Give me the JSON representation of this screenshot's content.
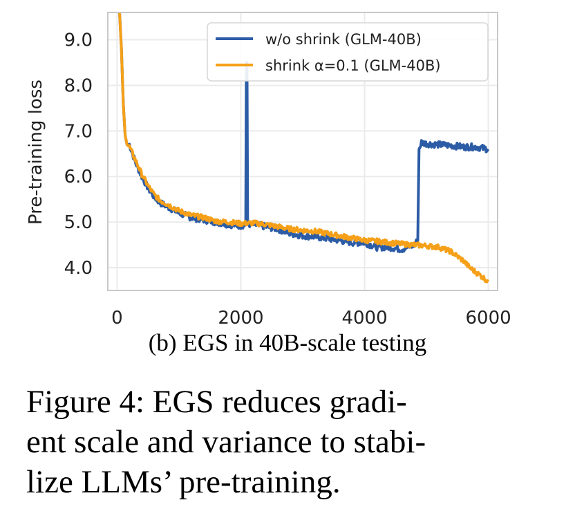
{
  "chart_data": {
    "type": "line",
    "ylabel": "Pre-training loss",
    "xlabel": "",
    "xlim": [
      -150,
      6150
    ],
    "ylim": [
      3.5,
      9.6
    ],
    "xticks": [
      0,
      2000,
      4000,
      6000
    ],
    "xtick_labels": [
      "0",
      "2000",
      "4000",
      "6000"
    ],
    "yticks": [
      4.0,
      5.0,
      6.0,
      7.0,
      8.0,
      9.0
    ],
    "ytick_labels": [
      "4.0",
      "5.0",
      "6.0",
      "7.0",
      "8.0",
      "9.0"
    ],
    "grid": true,
    "legend_position": "top-right",
    "series": [
      {
        "name": "w/o shrink (GLM-40B)",
        "color": "#2c5ca6",
        "x": [
          40,
          70,
          100,
          130,
          160,
          200,
          250,
          300,
          400,
          500,
          600,
          700,
          800,
          1000,
          1200,
          1400,
          1600,
          1800,
          2000,
          2080,
          2090,
          2100,
          2110,
          2130,
          2200,
          2400,
          2600,
          2800,
          3000,
          3200,
          3400,
          3600,
          3800,
          4000,
          4200,
          4400,
          4600,
          4800,
          4860,
          4880,
          4920,
          5000,
          5200,
          5400,
          5600,
          5800,
          6000
        ],
        "y": [
          9.6,
          8.8,
          7.6,
          6.9,
          6.7,
          6.7,
          6.5,
          6.3,
          6.0,
          5.75,
          5.55,
          5.42,
          5.35,
          5.2,
          5.1,
          5.05,
          5.0,
          4.95,
          4.92,
          4.95,
          8.5,
          8.5,
          5.0,
          4.95,
          4.95,
          4.9,
          4.85,
          4.75,
          4.7,
          4.68,
          4.64,
          4.6,
          4.55,
          4.55,
          4.45,
          4.45,
          4.4,
          4.5,
          4.6,
          6.6,
          6.75,
          6.72,
          6.7,
          6.68,
          6.65,
          6.65,
          6.6
        ]
      },
      {
        "name": "shrink α=0.1 (GLM-40B)",
        "color": "#f5a018",
        "x": [
          40,
          70,
          100,
          130,
          160,
          200,
          250,
          300,
          400,
          500,
          600,
          700,
          800,
          1000,
          1200,
          1400,
          1600,
          1800,
          2000,
          2200,
          2400,
          2600,
          2800,
          3000,
          3200,
          3400,
          3600,
          3800,
          4000,
          4200,
          4400,
          4600,
          4800,
          5000,
          5200,
          5400,
          5500,
          5600,
          5700,
          5800,
          5900,
          6000
        ],
        "y": [
          9.6,
          8.8,
          7.6,
          6.9,
          6.7,
          6.65,
          6.5,
          6.35,
          6.05,
          5.8,
          5.6,
          5.47,
          5.4,
          5.25,
          5.15,
          5.1,
          5.02,
          5.0,
          4.97,
          4.98,
          4.95,
          4.9,
          4.85,
          4.82,
          4.8,
          4.75,
          4.7,
          4.65,
          4.6,
          4.58,
          4.55,
          4.52,
          4.5,
          4.48,
          4.45,
          4.35,
          4.25,
          4.15,
          4.0,
          3.9,
          3.8,
          3.7
        ]
      }
    ]
  },
  "subcaption": "(b) EGS in 40B-scale testing",
  "caption_lines": [
    "Figure 4:  EGS reduces gradi-",
    "ent scale and variance to stabi-",
    "lize LLMs’ pre-training."
  ]
}
